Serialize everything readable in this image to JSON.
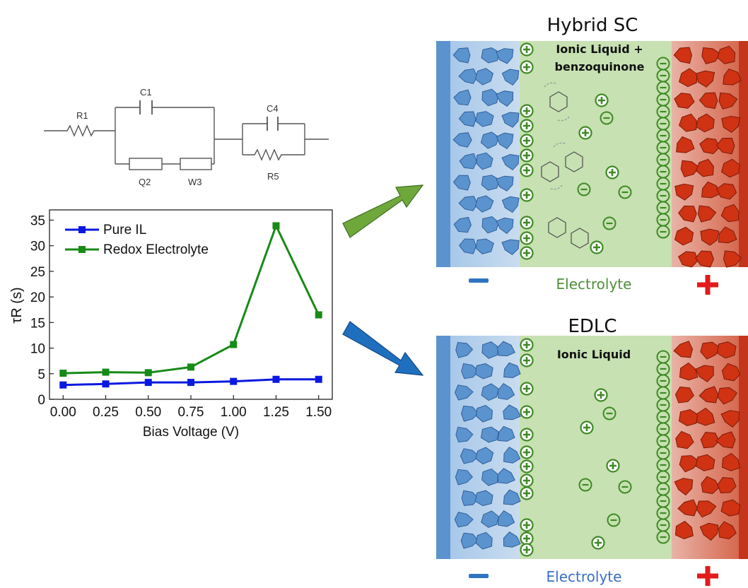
{
  "circuit": {
    "labels": [
      "R1",
      "C1",
      "Q2",
      "W3",
      "C4",
      "R5"
    ]
  },
  "chart_data": {
    "type": "line",
    "xlabel": "Bias Voltage (V)",
    "ylabel": "τR (s)",
    "x": [
      0.0,
      0.25,
      0.5,
      0.75,
      1.0,
      1.25,
      1.5
    ],
    "x_tick_labels": [
      "0.00",
      "0.25",
      "0.50",
      "0.75",
      "1.00",
      "1.25",
      "1.50"
    ],
    "y_ticks": [
      0,
      5,
      10,
      15,
      20,
      25,
      30,
      35
    ],
    "xlim": [
      -0.08,
      1.58
    ],
    "ylim": [
      0,
      37
    ],
    "grid": false,
    "legend_position": "top-left",
    "series": [
      {
        "name": "Pure IL",
        "color": "#0a19e0",
        "values": [
          2.8,
          3.0,
          3.3,
          3.3,
          3.5,
          3.9,
          3.9
        ]
      },
      {
        "name": "Redox Electrolyte",
        "color": "#178a17",
        "values": [
          5.1,
          5.3,
          5.2,
          6.3,
          10.7,
          33.9,
          16.5
        ]
      }
    ]
  },
  "panels": {
    "hybrid": {
      "title": "Hybrid SC",
      "electrolyte_text_line1": "Ionic Liquid +",
      "electrolyte_text_line2": "benzoquinone",
      "bottom_label": "Electrolyte",
      "bottom_label_color": "#4f8f3a"
    },
    "edlc": {
      "title": "EDLC",
      "electrolyte_text_line1": "Ionic Liquid",
      "bottom_label": "Electrolyte",
      "bottom_label_color": "#3a6fc4"
    }
  },
  "colors": {
    "negative_electrode": "#6f9fd8",
    "positive_electrode": "#d0371c",
    "electrolyte": "#c7e1b2",
    "ion": "#3f8a25",
    "arrow_top": "#6fa83a",
    "arrow_bottom": "#1f6fbf",
    "minus_sign": "#2f74c0",
    "plus_sign": "#e21b1b"
  }
}
